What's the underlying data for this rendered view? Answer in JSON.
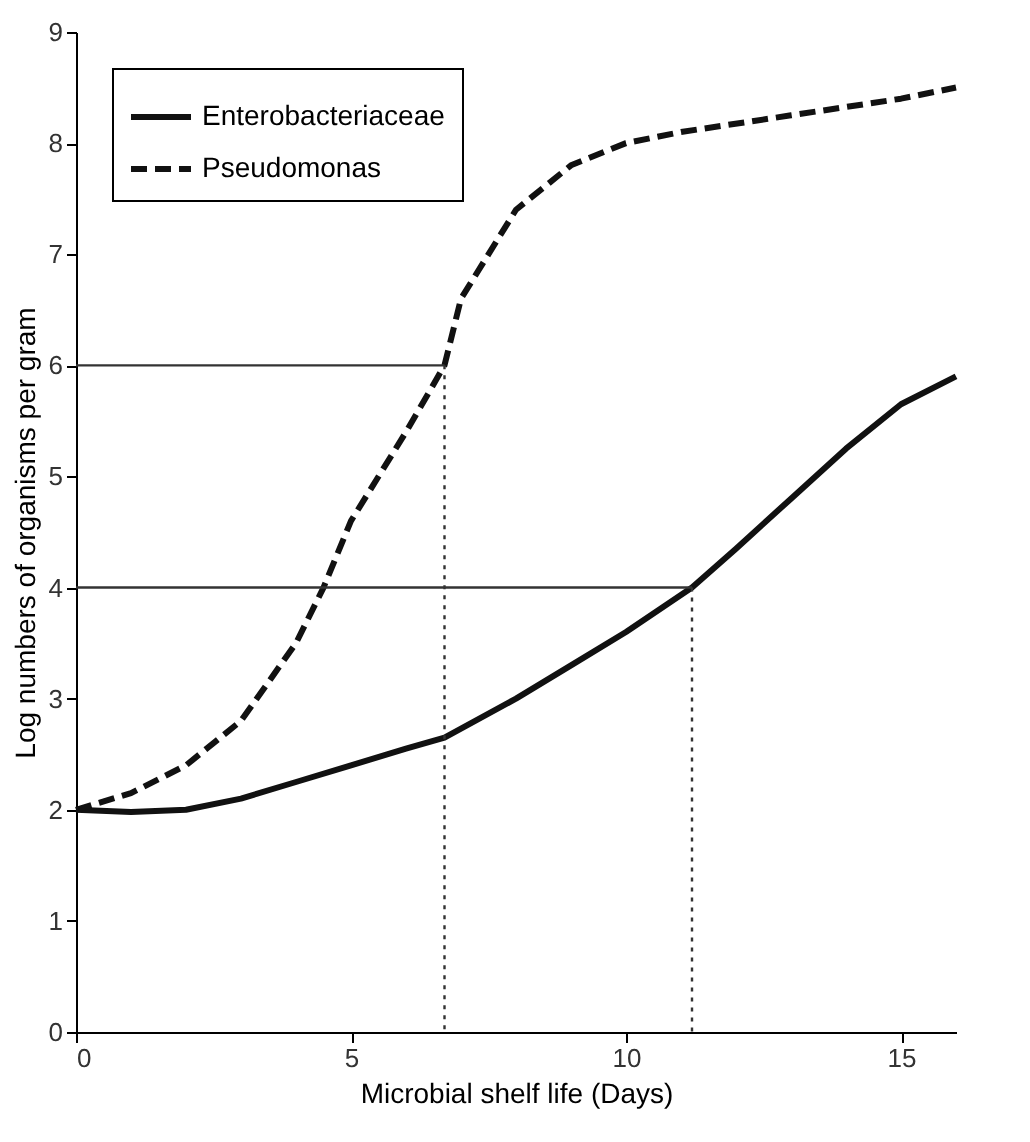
{
  "chart_data": {
    "type": "line",
    "xlabel": "Microbial shelf life (Days)",
    "ylabel": "Log numbers of organisms per gram",
    "xlim": [
      0,
      16
    ],
    "xticks": [
      0,
      5,
      10,
      15
    ],
    "ylim": [
      0,
      9
    ],
    "yticks": [
      0,
      1,
      2,
      3,
      4,
      5,
      6,
      7,
      8,
      9
    ],
    "grid": false,
    "legend": "top left",
    "series": [
      {
        "name": "Enterobacteriaceae",
        "color": "#111111",
        "line_style": "solid",
        "x": [
          0,
          1,
          2,
          3,
          4,
          5,
          6,
          6.7,
          8,
          9,
          10,
          11.2,
          12,
          13,
          14,
          15,
          16
        ],
        "values": [
          2,
          1.98,
          2,
          2.1,
          2.25,
          2.4,
          2.55,
          2.65,
          3,
          3.3,
          3.6,
          4,
          4.35,
          4.8,
          5.25,
          5.65,
          5.9
        ]
      },
      {
        "name": "Pseudomonas",
        "color": "#111111",
        "line_style": "dashed",
        "x": [
          0,
          1,
          2,
          3,
          4,
          4.5,
          5,
          6,
          6.7,
          7,
          8,
          9,
          10,
          11,
          13,
          15,
          16
        ],
        "values": [
          2,
          2.15,
          2.4,
          2.8,
          3.5,
          4,
          4.6,
          5.4,
          6,
          6.6,
          7.4,
          7.8,
          8,
          8.1,
          8.25,
          8.4,
          8.5
        ]
      },
      {
        "color": "#333333",
        "line_style": "solid",
        "x": [
          0,
          6.7
        ],
        "values": [
          6,
          6
        ]
      },
      {
        "color": "#333333",
        "line_style": "dotted",
        "x": [
          6.7,
          6.7
        ],
        "values": [
          6,
          0
        ]
      },
      {
        "color": "#333333",
        "line_style": "solid",
        "x": [
          0,
          11.2
        ],
        "values": [
          4,
          4
        ]
      },
      {
        "color": "#333333",
        "line_style": "dotted",
        "x": [
          11.2,
          11.2
        ],
        "values": [
          4,
          0
        ]
      }
    ]
  }
}
